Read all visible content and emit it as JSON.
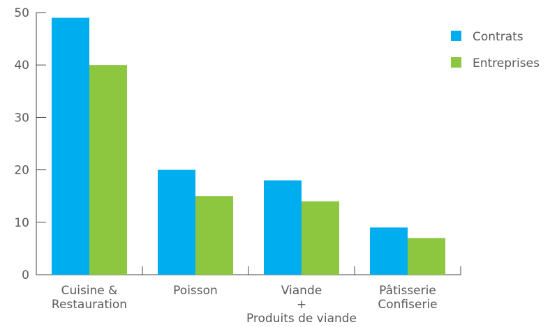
{
  "chart_data": {
    "type": "bar",
    "categories": [
      [
        "Cuisine &",
        "Restauration"
      ],
      [
        "Poisson"
      ],
      [
        "Viande",
        "+",
        "Produits de viande"
      ],
      [
        "Pâtisserie",
        "Confiserie"
      ]
    ],
    "series": [
      {
        "name": "Contrats",
        "color": "#00aeef",
        "values": [
          49,
          20,
          18,
          9
        ]
      },
      {
        "name": "Entreprises",
        "color": "#8dc63f",
        "values": [
          40,
          15,
          14,
          7
        ]
      }
    ],
    "ylim": [
      0,
      50
    ],
    "yticks": [
      0,
      10,
      20,
      30,
      40,
      50
    ],
    "grid": false,
    "legend": "top-right"
  }
}
